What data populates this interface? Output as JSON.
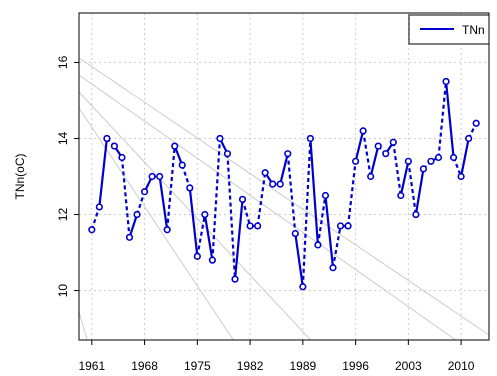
{
  "chart_data": {
    "type": "line",
    "title": "",
    "xlabel": "",
    "ylabel": "TNn(oC)",
    "x": [
      1961,
      1962,
      1963,
      1964,
      1965,
      1966,
      1967,
      1968,
      1969,
      1970,
      1971,
      1972,
      1973,
      1974,
      1975,
      1976,
      1977,
      1978,
      1979,
      1980,
      1981,
      1982,
      1983,
      1984,
      1985,
      1986,
      1987,
      1988,
      1989,
      1990,
      1991,
      1992,
      1993,
      1994,
      1995,
      1996,
      1997,
      1998,
      1999,
      2000,
      2001,
      2002,
      2003,
      2004,
      2005,
      2006,
      2007,
      2008,
      2009,
      2010,
      2011,
      2012
    ],
    "series": [
      {
        "name": "TNn",
        "color": "#0000cc",
        "line_style": "dashed-with-solid-segments",
        "marker": "open-circle",
        "values": [
          11.6,
          12.2,
          14.0,
          13.8,
          13.5,
          11.4,
          12.0,
          12.6,
          13.0,
          13.0,
          11.6,
          13.8,
          13.3,
          12.7,
          10.9,
          12.0,
          10.8,
          14.0,
          13.6,
          10.3,
          12.4,
          11.7,
          11.7,
          13.1,
          12.8,
          12.8,
          13.6,
          11.5,
          10.1,
          14.0,
          11.2,
          12.5,
          10.6,
          11.7,
          11.7,
          13.4,
          14.2,
          13.0,
          13.8,
          13.6,
          13.9,
          12.5,
          13.4,
          12.0,
          13.2,
          13.4,
          13.5,
          15.5,
          13.5,
          13.0,
          14.0,
          14.4
        ]
      }
    ],
    "xticks": [
      "1961",
      "1968",
      "1975",
      "1982",
      "1989",
      "1996",
      "2003",
      "2010"
    ],
    "yticks": [
      "10",
      "12",
      "14",
      "16"
    ],
    "xlim": [
      1959.3,
      2013.7
    ],
    "ylim": [
      8.7,
      17.3
    ],
    "grid": true,
    "legend_position": "top-right",
    "background_lines_color": "#cccccc"
  }
}
